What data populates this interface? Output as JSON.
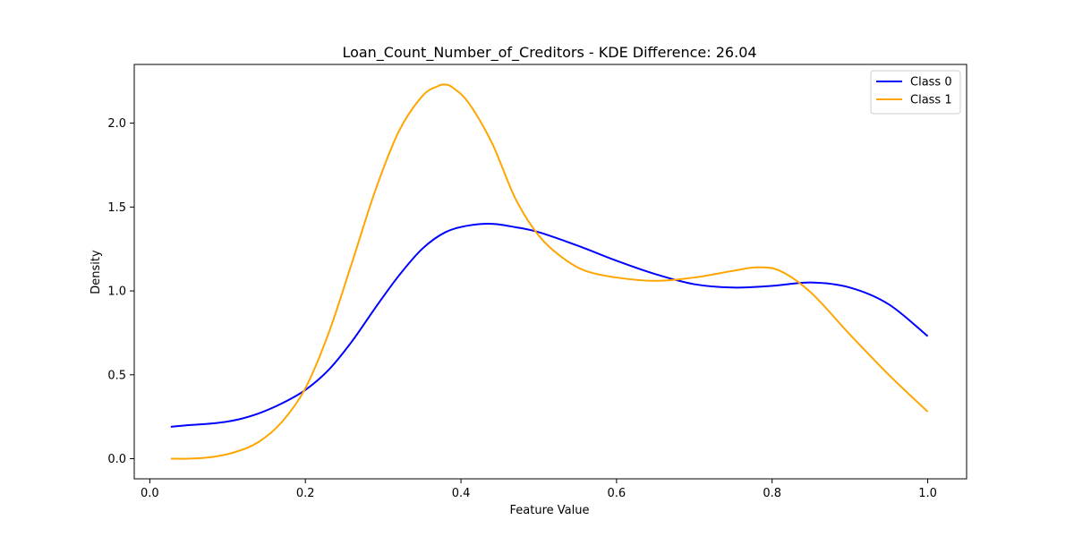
{
  "chart_data": {
    "type": "line",
    "title": "Loan_Count_Number_of_Creditors - KDE Difference: 26.04",
    "xlabel": "Feature Value",
    "ylabel": "Density",
    "xlim": [
      -0.02,
      1.05
    ],
    "ylim": [
      -0.12,
      2.35
    ],
    "xticks": [
      0.0,
      0.2,
      0.4,
      0.6,
      0.8,
      1.0
    ],
    "xtick_labels": [
      "0.0",
      "0.2",
      "0.4",
      "0.6",
      "0.8",
      "1.0"
    ],
    "yticks": [
      0.0,
      0.5,
      1.0,
      1.5,
      2.0
    ],
    "ytick_labels": [
      "0.0",
      "0.5",
      "1.0",
      "1.5",
      "2.0"
    ],
    "grid": false,
    "legend_position": "top-right",
    "series": [
      {
        "name": "Class 0",
        "color": "#0000ff",
        "x": [
          0.027,
          0.05,
          0.08,
          0.11,
          0.14,
          0.17,
          0.2,
          0.23,
          0.26,
          0.29,
          0.32,
          0.35,
          0.38,
          0.41,
          0.44,
          0.47,
          0.5,
          0.55,
          0.6,
          0.65,
          0.7,
          0.75,
          0.8,
          0.85,
          0.9,
          0.95,
          1.0
        ],
        "y": [
          0.19,
          0.2,
          0.21,
          0.23,
          0.27,
          0.33,
          0.41,
          0.53,
          0.7,
          0.9,
          1.09,
          1.25,
          1.35,
          1.39,
          1.4,
          1.38,
          1.35,
          1.27,
          1.18,
          1.1,
          1.04,
          1.02,
          1.03,
          1.05,
          1.02,
          0.92,
          0.73
        ]
      },
      {
        "name": "Class 1",
        "color": "#ffa500",
        "x": [
          0.027,
          0.05,
          0.08,
          0.11,
          0.14,
          0.17,
          0.2,
          0.23,
          0.26,
          0.29,
          0.32,
          0.35,
          0.37,
          0.38,
          0.39,
          0.41,
          0.44,
          0.47,
          0.5,
          0.53,
          0.56,
          0.6,
          0.65,
          0.7,
          0.75,
          0.78,
          0.81,
          0.85,
          0.9,
          0.95,
          1.0
        ],
        "y": [
          0.0,
          0.0,
          0.01,
          0.04,
          0.1,
          0.22,
          0.42,
          0.75,
          1.17,
          1.6,
          1.95,
          2.16,
          2.22,
          2.23,
          2.21,
          2.12,
          1.88,
          1.55,
          1.33,
          1.2,
          1.12,
          1.08,
          1.06,
          1.08,
          1.12,
          1.14,
          1.12,
          0.99,
          0.74,
          0.5,
          0.28
        ]
      }
    ]
  }
}
